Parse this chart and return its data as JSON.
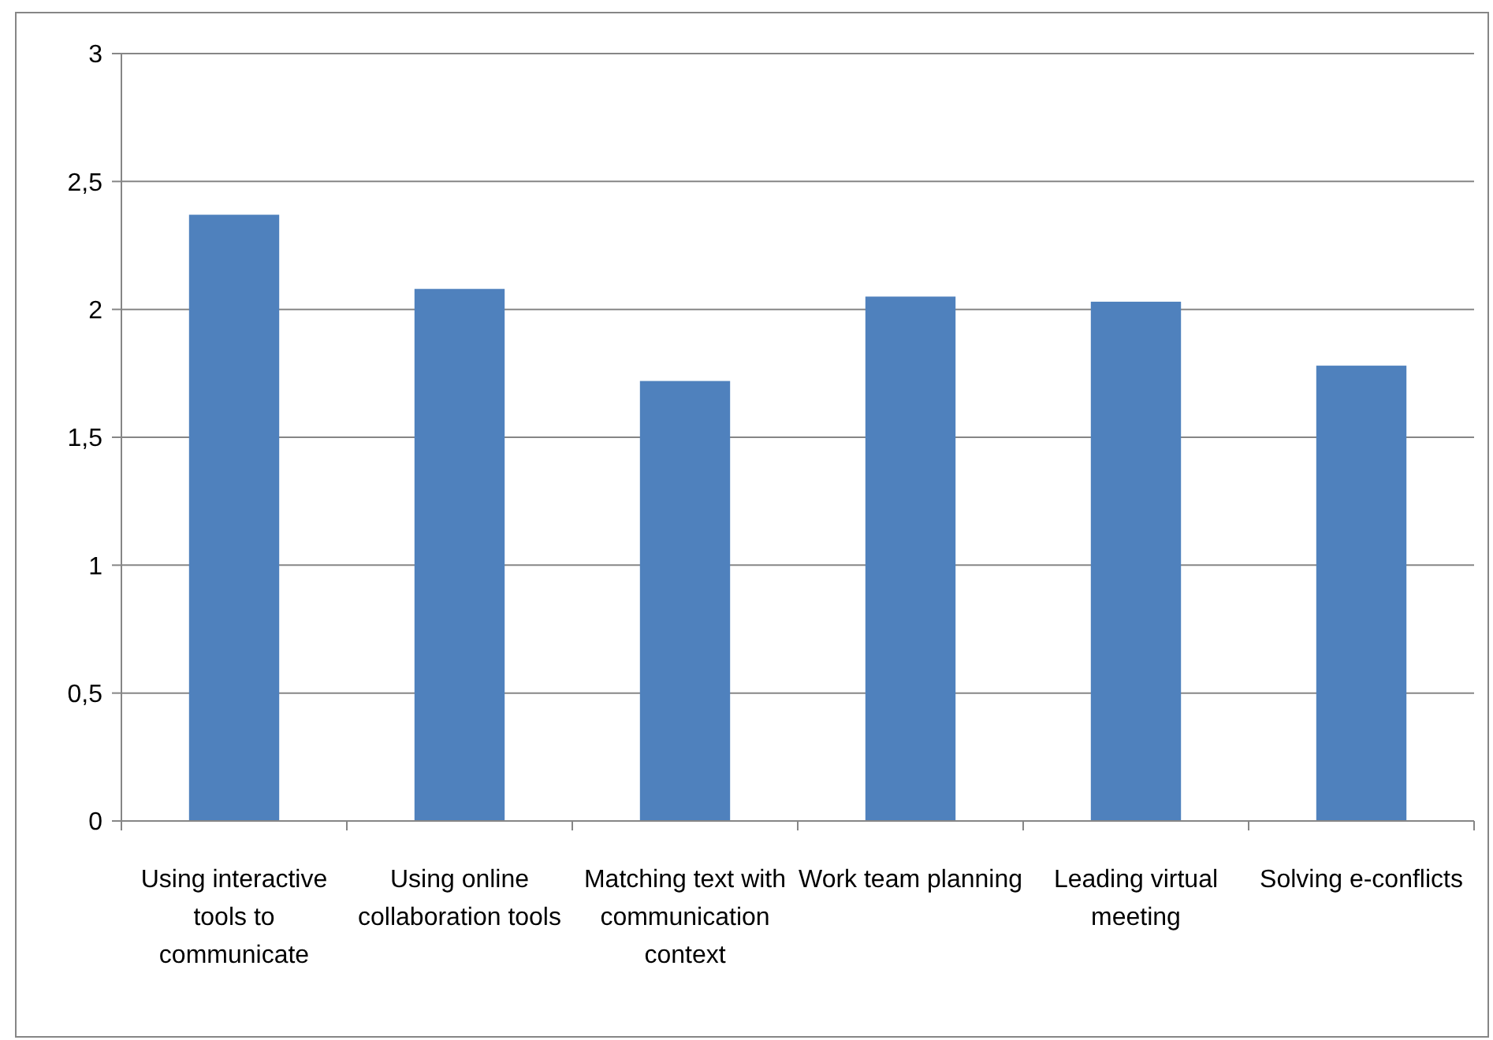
{
  "chart_data": {
    "type": "bar",
    "categories": [
      "Using interactive tools to communicate",
      "Using online collaboration tools",
      "Matching text with communication context",
      "Work team planning",
      "Leading virtual meeting",
      "Solving e-conflicts"
    ],
    "values": [
      2.37,
      2.08,
      1.72,
      2.05,
      2.03,
      1.78
    ],
    "color": "#4f81bd",
    "ylim": [
      0,
      3
    ],
    "yticks": [
      0,
      {
        "value": 0.5,
        "label": "0,5"
      },
      1,
      {
        "value": 1.5,
        "label": "1,5"
      },
      2,
      {
        "value": 2.5,
        "label": "2,5"
      },
      3
    ],
    "grid": "y"
  }
}
